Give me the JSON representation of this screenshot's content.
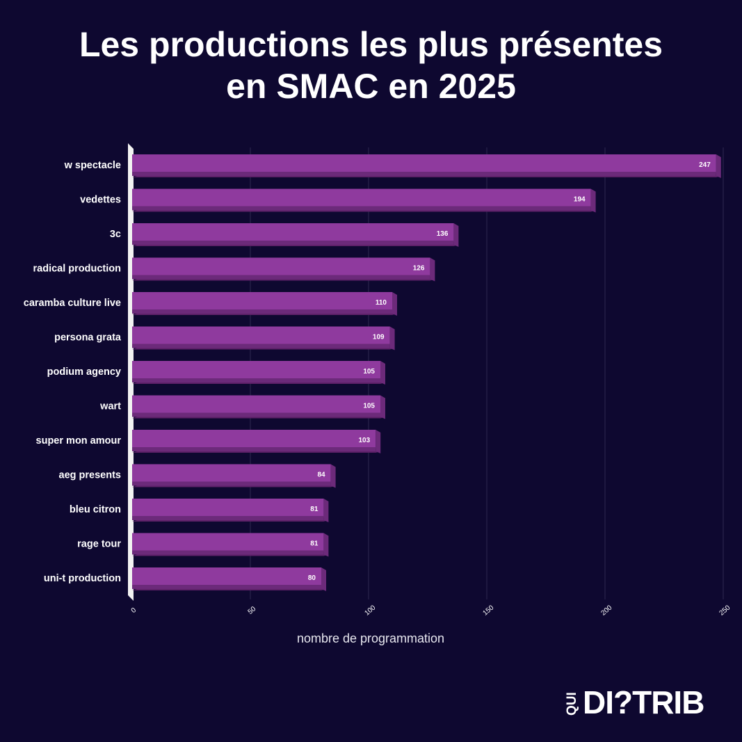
{
  "title_line1": "Les productions les plus présentes",
  "title_line2": "en SMAC en 2025",
  "logo": {
    "small": "QUI",
    "main": "DI?TRIB"
  },
  "colors": {
    "background": "#0e0830",
    "bar_front": "#8f3a9e",
    "bar_top": "#a04db0",
    "bar_side": "#6c2a7a",
    "bar_shadow": "#5e2169",
    "grid": "#2e2750"
  },
  "chart_data": {
    "type": "bar",
    "orientation": "horizontal",
    "categories": [
      "w spectacle",
      "vedettes",
      "3c",
      "radical production",
      "caramba culture live",
      "persona grata",
      "podium agency",
      "wart",
      "super mon amour",
      "aeg presents",
      "bleu citron",
      "rage tour",
      "uni-t production"
    ],
    "values": [
      247,
      194,
      136,
      126,
      110,
      109,
      105,
      105,
      103,
      84,
      81,
      81,
      80
    ],
    "xlabel": "nombre de programmation",
    "xlim": [
      0,
      250
    ],
    "xticks": [
      0,
      50,
      100,
      150,
      200,
      250
    ],
    "grid": true,
    "legend": "none"
  }
}
